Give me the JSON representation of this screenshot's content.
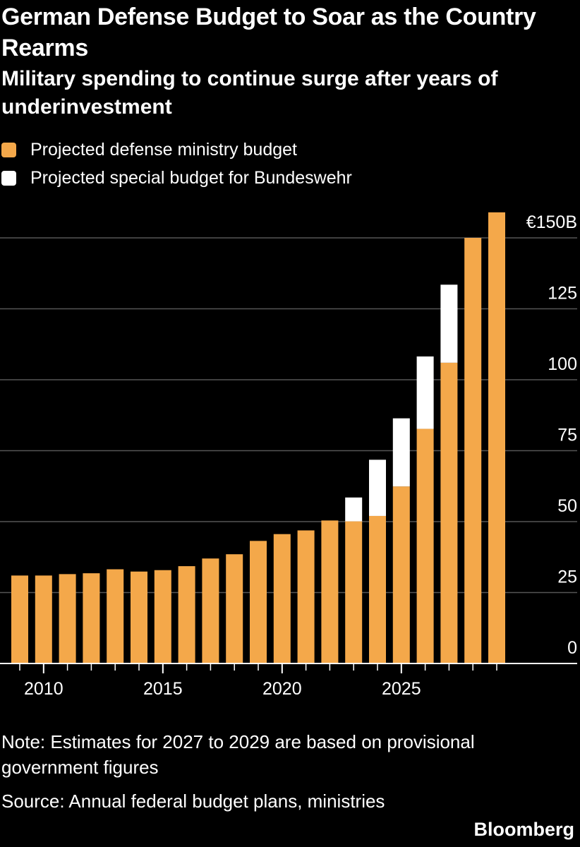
{
  "title": "German Defense Budget to Soar as the Country Rearms",
  "subtitle": "Military spending to continue surge after years of underinvestment",
  "note": "Note: Estimates for 2027 to 2029 are based on provisional government figures",
  "source": "Source: Annual federal budget plans, ministries",
  "brand": "Bloomberg",
  "colors": {
    "ministry": "#f4a84a",
    "special": "#ffffff",
    "background": "#000000",
    "grid": "#555555"
  },
  "chart_data": {
    "type": "bar",
    "stacked": true,
    "title": "German Defense Budget to Soar as the Country Rearms",
    "x": [
      2009,
      2010,
      2011,
      2012,
      2013,
      2014,
      2015,
      2016,
      2017,
      2018,
      2019,
      2020,
      2021,
      2022,
      2023,
      2024,
      2025,
      2026,
      2027,
      2028,
      2029
    ],
    "series": [
      {
        "name": "Projected defense ministry budget",
        "values": [
          31,
          31,
          31.5,
          31.8,
          33.2,
          32.4,
          32.9,
          34.3,
          37,
          38.5,
          43.2,
          45.6,
          46.9,
          50.4,
          50.1,
          52,
          62.4,
          82.7,
          106,
          150,
          159
        ]
      },
      {
        "name": "Projected special budget for Bundeswehr",
        "values": [
          0,
          0,
          0,
          0,
          0,
          0,
          0,
          0,
          0,
          0,
          0,
          0,
          0,
          0,
          8.4,
          19.8,
          24,
          25.5,
          27.5,
          0,
          0
        ]
      }
    ],
    "x_ticks": [
      2010,
      2015,
      2020,
      2025
    ],
    "y_ticks": [
      {
        "value": 0,
        "label": "0"
      },
      {
        "value": 25,
        "label": "25"
      },
      {
        "value": 50,
        "label": "50"
      },
      {
        "value": 75,
        "label": "75"
      },
      {
        "value": 100,
        "label": "100"
      },
      {
        "value": 125,
        "label": "125"
      },
      {
        "value": 150,
        "label": "€150B"
      }
    ],
    "ylim": [
      0,
      160
    ],
    "xlabel": "",
    "ylabel": "",
    "y_axis_position": "right",
    "grid": true,
    "legend_position": "top-left"
  }
}
